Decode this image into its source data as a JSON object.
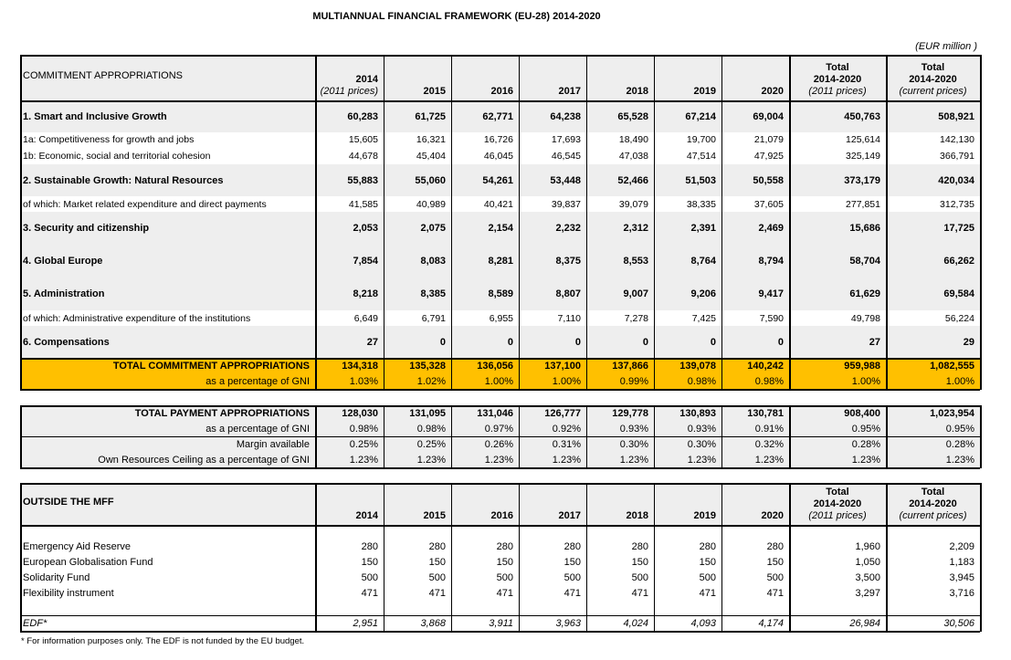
{
  "title": "MULTIANNUAL FINANCIAL FRAMEWORK (EU-28) 2014-2020",
  "unit_note": "(EUR million )",
  "commitments": {
    "header": [
      {
        "lines": [
          "COMMITMENT APPROPRIATIONS"
        ]
      },
      {
        "lines": [
          "2014"
        ],
        "note": "(2011 prices)"
      },
      {
        "lines": [
          "2015"
        ]
      },
      {
        "lines": [
          "2016"
        ]
      },
      {
        "lines": [
          "2017"
        ]
      },
      {
        "lines": [
          "2018"
        ]
      },
      {
        "lines": [
          "2019"
        ]
      },
      {
        "lines": [
          "2020"
        ]
      },
      {
        "lines": [
          "Total",
          "2014-2020"
        ],
        "note": "(2011 prices)"
      },
      {
        "lines": [
          "Total",
          "2014-2020"
        ],
        "note": "(current prices)"
      }
    ],
    "rows": [
      {
        "label": "1. Smart and Inclusive Growth",
        "values": [
          "60,283",
          "61,725",
          "62,771",
          "64,238",
          "65,528",
          "67,214",
          "69,004",
          "450,763",
          "508,921"
        ]
      },
      {
        "label": "1a: Competitiveness for growth and jobs",
        "values": [
          "15,605",
          "16,321",
          "16,726",
          "17,693",
          "18,490",
          "19,700",
          "21,079",
          "125,614",
          "142,130"
        ]
      },
      {
        "label": "1b: Economic, social and territorial cohesion",
        "values": [
          "44,678",
          "45,404",
          "46,045",
          "46,545",
          "47,038",
          "47,514",
          "47,925",
          "325,149",
          "366,791"
        ]
      },
      {
        "label": "2. Sustainable Growth: Natural Resources",
        "values": [
          "55,883",
          "55,060",
          "54,261",
          "53,448",
          "52,466",
          "51,503",
          "50,558",
          "373,179",
          "420,034"
        ]
      },
      {
        "label": "of which: Market related expenditure and direct payments",
        "values": [
          "41,585",
          "40,989",
          "40,421",
          "39,837",
          "39,079",
          "38,335",
          "37,605",
          "277,851",
          "312,735"
        ]
      },
      {
        "label": "3. Security and citizenship",
        "values": [
          "2,053",
          "2,075",
          "2,154",
          "2,232",
          "2,312",
          "2,391",
          "2,469",
          "15,686",
          "17,725"
        ]
      },
      {
        "label": "4. Global Europe",
        "values": [
          "7,854",
          "8,083",
          "8,281",
          "8,375",
          "8,553",
          "8,764",
          "8,794",
          "58,704",
          "66,262"
        ]
      },
      {
        "label": "5. Administration",
        "values": [
          "8,218",
          "8,385",
          "8,589",
          "8,807",
          "9,007",
          "9,206",
          "9,417",
          "61,629",
          "69,584"
        ]
      },
      {
        "label": "of which: Administrative expenditure of the institutions",
        "values": [
          "6,649",
          "6,791",
          "6,955",
          "7,110",
          "7,278",
          "7,425",
          "7,590",
          "49,798",
          "56,224"
        ]
      },
      {
        "label": "6. Compensations",
        "values": [
          "27",
          "0",
          "0",
          "0",
          "0",
          "0",
          "0",
          "27",
          "29"
        ]
      }
    ],
    "total": {
      "label": "TOTAL COMMITMENT APPROPRIATIONS",
      "values": [
        "134,318",
        "135,328",
        "136,056",
        "137,100",
        "137,866",
        "139,078",
        "140,242",
        "959,988",
        "1,082,555"
      ]
    },
    "gni": {
      "label": "as a percentage of GNI",
      "values": [
        "1.03%",
        "1.02%",
        "1.00%",
        "1.00%",
        "0.99%",
        "0.98%",
        "0.98%",
        "1.00%",
        "1.00%"
      ]
    }
  },
  "payments": {
    "rows": [
      {
        "label": "TOTAL PAYMENT APPROPRIATIONS",
        "values": [
          "128,030",
          "131,095",
          "131,046",
          "126,777",
          "129,778",
          "130,893",
          "130,781",
          "908,400",
          "1,023,954"
        ]
      },
      {
        "label": "as a percentage of GNI",
        "values": [
          "0.98%",
          "0.98%",
          "0.97%",
          "0.92%",
          "0.93%",
          "0.93%",
          "0.91%",
          "0.95%",
          "0.95%"
        ]
      },
      {
        "label": "Margin available",
        "values": [
          "0.25%",
          "0.25%",
          "0.26%",
          "0.31%",
          "0.30%",
          "0.30%",
          "0.32%",
          "0.28%",
          "0.28%"
        ]
      },
      {
        "label": "Own Resources Ceiling as a percentage of GNI",
        "values": [
          "1.23%",
          "1.23%",
          "1.23%",
          "1.23%",
          "1.23%",
          "1.23%",
          "1.23%",
          "1.23%",
          "1.23%"
        ]
      }
    ]
  },
  "outside": {
    "header": [
      {
        "lines": [
          "OUTSIDE THE MFF"
        ]
      },
      {
        "lines": [
          "2014"
        ]
      },
      {
        "lines": [
          "2015"
        ]
      },
      {
        "lines": [
          "2016"
        ]
      },
      {
        "lines": [
          "2017"
        ]
      },
      {
        "lines": [
          "2018"
        ]
      },
      {
        "lines": [
          "2019"
        ]
      },
      {
        "lines": [
          "2020"
        ]
      },
      {
        "lines": [
          "Total",
          "2014-2020"
        ],
        "note": "(2011 prices)"
      },
      {
        "lines": [
          "Total",
          "2014-2020"
        ],
        "note": "(current prices)"
      }
    ],
    "rows": [
      {
        "label": "Emergency Aid Reserve",
        "values": [
          "280",
          "280",
          "280",
          "280",
          "280",
          "280",
          "280",
          "1,960",
          "2,209"
        ]
      },
      {
        "label": "European Globalisation Fund",
        "values": [
          "150",
          "150",
          "150",
          "150",
          "150",
          "150",
          "150",
          "1,050",
          "1,183"
        ]
      },
      {
        "label": "Solidarity Fund",
        "values": [
          "500",
          "500",
          "500",
          "500",
          "500",
          "500",
          "500",
          "3,500",
          "3,945"
        ]
      },
      {
        "label": "Flexibility instrument",
        "values": [
          "471",
          "471",
          "471",
          "471",
          "471",
          "471",
          "471",
          "3,297",
          "3,716"
        ]
      }
    ],
    "edf": {
      "label": "EDF*",
      "values": [
        "2,951",
        "3,868",
        "3,911",
        "3,963",
        "4,024",
        "4,093",
        "4,174",
        "26,984",
        "30,506"
      ]
    }
  },
  "footnote": "* For information purposes only. The EDF is not funded by the EU budget."
}
